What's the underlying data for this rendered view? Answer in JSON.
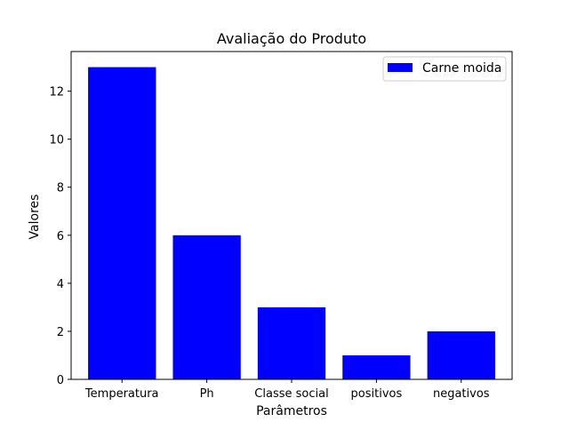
{
  "chart_data": {
    "type": "bar",
    "title": "Avaliação do Produto",
    "xlabel": "Parâmetros",
    "ylabel": "Valores",
    "categories": [
      "Temperatura",
      "Ph",
      "Classe social",
      "positivos",
      "negativos"
    ],
    "series": [
      {
        "name": "Carne moida",
        "values": [
          13,
          6,
          3,
          1,
          2
        ],
        "color": "#0000ff"
      }
    ],
    "ylim": [
      0,
      13.65
    ],
    "yticks": [
      0,
      2,
      4,
      6,
      8,
      10,
      12
    ],
    "grid": false,
    "legend_position": "top-right"
  }
}
